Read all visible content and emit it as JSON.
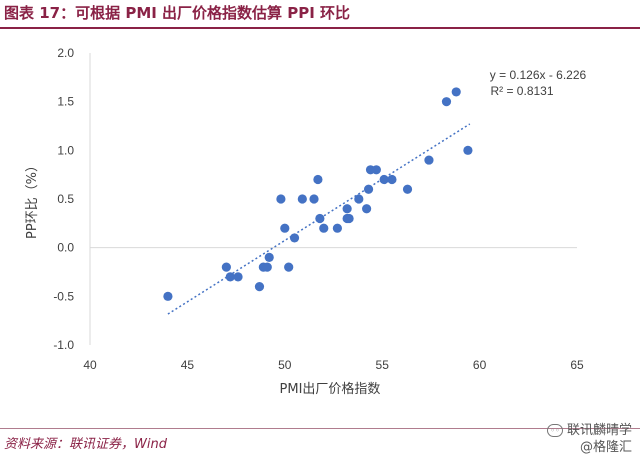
{
  "title": "图表 17：可根据 PMI 出厂价格指数估算 PPI 环比",
  "source": "资料来源：联讯证券，Wind",
  "watermark": {
    "line1": "联讯麟晴学",
    "line2": "@格隆汇"
  },
  "colors": {
    "title": "#8a2246",
    "point": "#4472c4",
    "trend": "#4472c4",
    "axis": "#d9d9d9"
  },
  "chart_data": {
    "type": "scatter",
    "xlabel": "PMI出厂价格指数",
    "ylabel": "PP环比（%）",
    "xlim": [
      40,
      65
    ],
    "ylim": [
      -1.0,
      2.0
    ],
    "xticks": [
      "40",
      "45",
      "50",
      "55",
      "60",
      "65"
    ],
    "yticks": [
      "-1.0",
      "-0.5",
      "0.0",
      "0.5",
      "1.0",
      "1.5",
      "2.0"
    ],
    "grid": false,
    "trendline": {
      "type": "linear",
      "slope": 0.126,
      "intercept": -6.226,
      "x_range": [
        44,
        59.5
      ]
    },
    "equation": "y = 0.126x - 6.226",
    "r_squared": "R² = 0.8131",
    "points": [
      [
        44,
        -0.5
      ],
      [
        47,
        -0.2
      ],
      [
        47.2,
        -0.3
      ],
      [
        47.6,
        -0.3
      ],
      [
        48.7,
        -0.4
      ],
      [
        48.9,
        -0.2
      ],
      [
        49.1,
        -0.2
      ],
      [
        49.2,
        -0.1
      ],
      [
        49.8,
        0.5
      ],
      [
        50.0,
        0.2
      ],
      [
        50.2,
        -0.2
      ],
      [
        50.5,
        0.1
      ],
      [
        50.9,
        0.5
      ],
      [
        51.5,
        0.5
      ],
      [
        51.7,
        0.7
      ],
      [
        51.8,
        0.3
      ],
      [
        52.0,
        0.2
      ],
      [
        52.7,
        0.2
      ],
      [
        53.2,
        0.4
      ],
      [
        53.2,
        0.3
      ],
      [
        53.3,
        0.3
      ],
      [
        53.8,
        0.5
      ],
      [
        54.2,
        0.4
      ],
      [
        54.3,
        0.6
      ],
      [
        54.4,
        0.8
      ],
      [
        54.7,
        0.8
      ],
      [
        55.1,
        0.7
      ],
      [
        55.5,
        0.7
      ],
      [
        56.3,
        0.6
      ],
      [
        57.4,
        0.9
      ],
      [
        58.3,
        1.5
      ],
      [
        58.8,
        1.6
      ],
      [
        59.4,
        1.0
      ]
    ]
  }
}
